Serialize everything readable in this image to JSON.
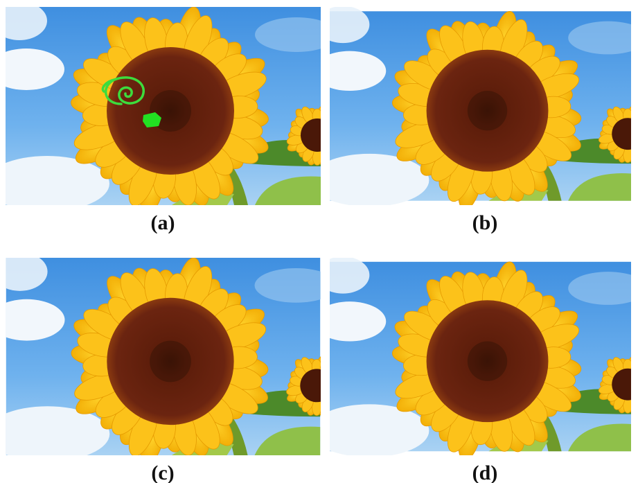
{
  "figure": {
    "panels": [
      {
        "label": "(a)"
      },
      {
        "label": "(b)"
      },
      {
        "label": "(c)"
      },
      {
        "label": "(d)"
      }
    ]
  }
}
